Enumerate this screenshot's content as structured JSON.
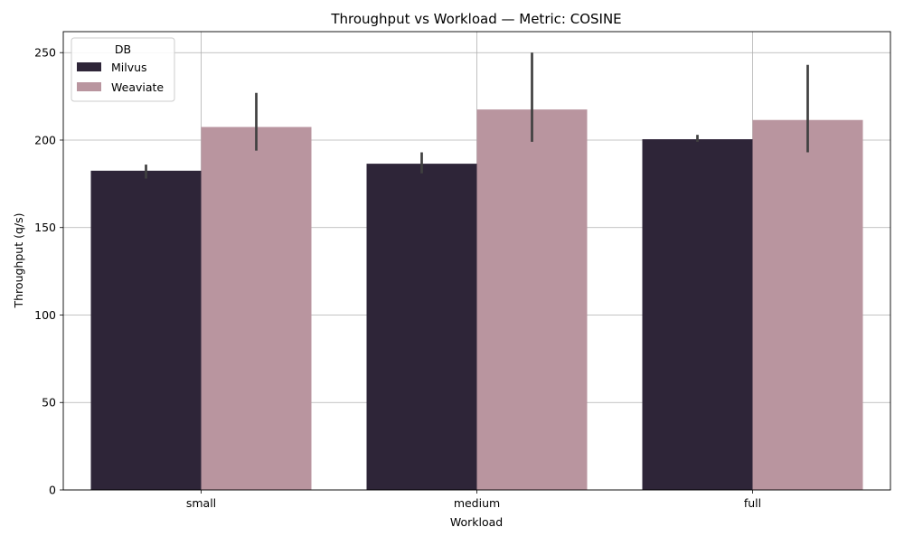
{
  "chart_data": {
    "type": "bar",
    "title": "Throughput vs Workload — Metric: COSINE",
    "xlabel": "Workload",
    "ylabel": "Throughput (q/s)",
    "categories": [
      "small",
      "medium",
      "full"
    ],
    "ylim": [
      0,
      262
    ],
    "yticks": [
      0,
      50,
      100,
      150,
      200,
      250
    ],
    "grid": true,
    "legend": {
      "title": "DB",
      "placement": "top-left"
    },
    "series": [
      {
        "name": "Milvus",
        "color": "#2e2538",
        "values": [
          182.5,
          186.5,
          200.5
        ],
        "error_low": [
          178,
          181,
          199
        ],
        "error_high": [
          186,
          193,
          203
        ]
      },
      {
        "name": "Weaviate",
        "color": "#b9959f",
        "values": [
          207.5,
          217.5,
          211.5
        ],
        "error_low": [
          194,
          199,
          193
        ],
        "error_high": [
          227,
          250,
          243
        ]
      }
    ],
    "errorbar_color": "#404040"
  }
}
